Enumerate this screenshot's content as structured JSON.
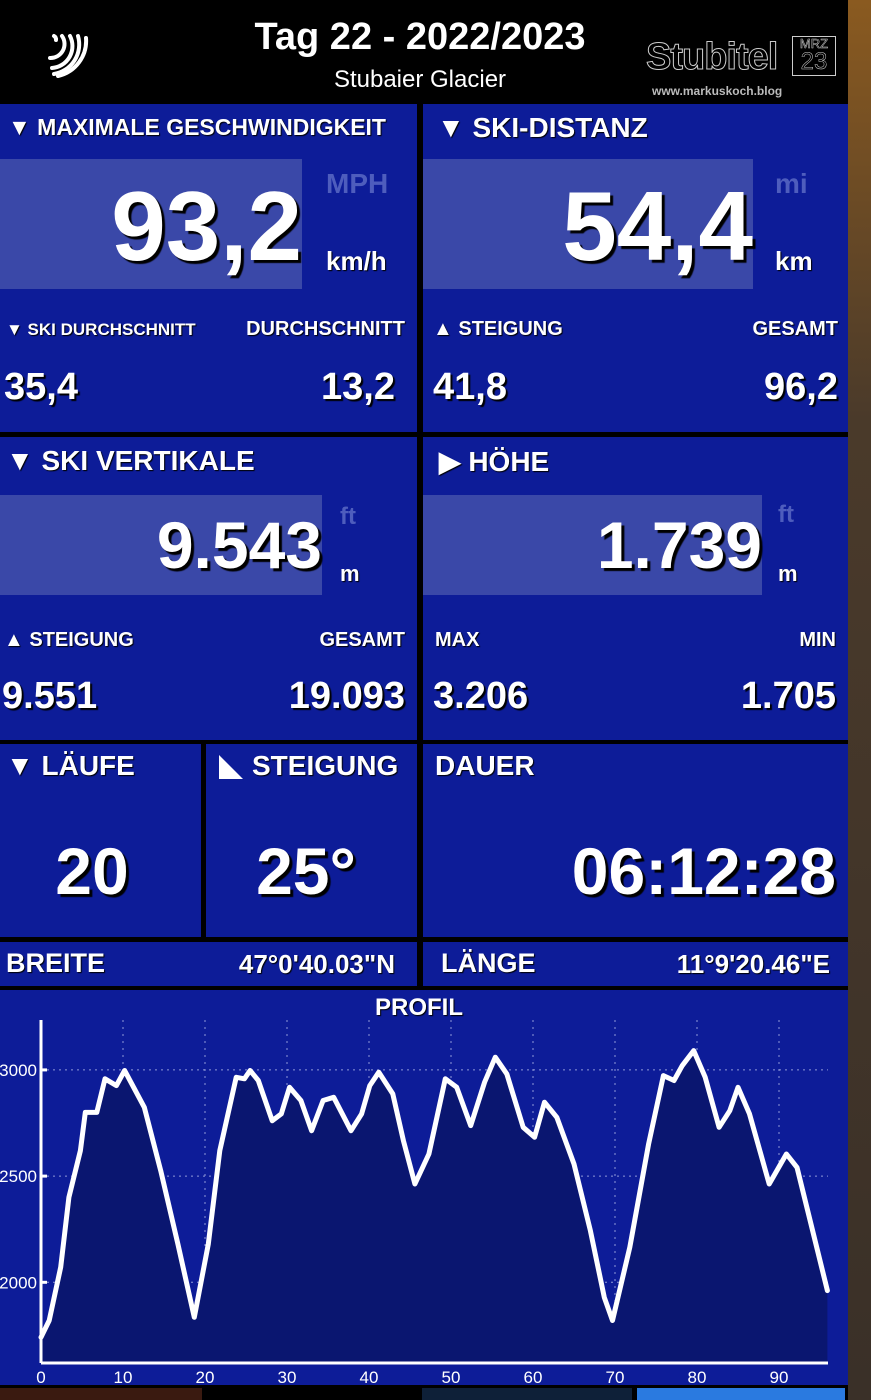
{
  "header": {
    "title": "Tag 22 - 2022/2023",
    "subtitle": "Stubaier Glacier",
    "logo_text": "Stubitel",
    "logo_month": "MRZ",
    "logo_year": "23",
    "logo_url": "www.markuskoch.blog",
    "icon": "signal-waves-icon"
  },
  "max_speed": {
    "label": "▼ MAXIMALE GESCHWINDIGKEIT",
    "value": "93,2",
    "alt_unit": "MPH",
    "unit": "km/h",
    "sub_left_label": "▼ SKI DURCHSCHNITT",
    "sub_right_label": "DURCHSCHNITT",
    "sub_left_value": "35,4",
    "sub_right_value": "13,2"
  },
  "ski_distance": {
    "label": "▼ SKI-DISTANZ",
    "value": "54,4",
    "alt_unit": "mi",
    "unit": "km",
    "sub_left_label": "▲ STEIGUNG",
    "sub_right_label": "GESAMT",
    "sub_left_value": "41,8",
    "sub_right_value": "96,2"
  },
  "ski_vertical": {
    "label": "▼ SKI VERTIKALE",
    "value": "9.543",
    "alt_unit": "ft",
    "unit": "m",
    "sub_left_label": "▲ STEIGUNG",
    "sub_right_label": "GESAMT",
    "sub_left_value": "9.551",
    "sub_right_value": "19.093"
  },
  "altitude": {
    "label": "▶ HÖHE",
    "value": "1.739",
    "alt_unit": "ft",
    "unit": "m",
    "sub_left_label": "MAX",
    "sub_right_label": "MIN",
    "sub_left_value": "3.206",
    "sub_right_value": "1.705"
  },
  "runs": {
    "label": "▼ LÄUFE",
    "value": "20"
  },
  "slope": {
    "label": "STEIGUNG",
    "value": "25°"
  },
  "duration": {
    "label": "DAUER",
    "value": "06:12:28"
  },
  "latitude": {
    "label": "BREITE",
    "value": "47°0'40.03\"N"
  },
  "longitude": {
    "label": "LÄNGE",
    "value": "11°9'20.46\"E"
  },
  "colors": {
    "panel": "#0d1c98",
    "highlight": "#3a48a8",
    "chart_bg": "#0d1c98",
    "line": "#ffffff"
  },
  "chart_data": {
    "type": "area",
    "title": "PROFIL",
    "xlabel": "",
    "ylabel": "",
    "xlim": [
      0,
      96
    ],
    "ylim": [
      1620,
      3235
    ],
    "xticks": [
      0,
      10,
      20,
      30,
      40,
      50,
      60,
      70,
      80,
      90
    ],
    "yticks": [
      2000,
      2500,
      3000
    ],
    "ytick_labels": [
      "2000",
      "2500",
      "3000"
    ],
    "grid": true,
    "x": [
      0,
      1,
      2.4,
      3.4,
      4.8,
      5.4,
      6.8,
      7.8,
      9.2,
      10.2,
      12.6,
      14.6,
      16.7,
      18.7,
      20.4,
      21.8,
      23.8,
      24.8,
      25.5,
      26.5,
      28.2,
      29.3,
      30.3,
      31.7,
      33,
      34.4,
      35.7,
      37.8,
      39.1,
      40.1,
      41.2,
      42.9,
      44.2,
      45.6,
      47.3,
      49.3,
      50.7,
      52.4,
      54.1,
      55.4,
      56.8,
      58.8,
      60.2,
      61.4,
      62.9,
      65,
      67,
      68.7,
      69.7,
      71.8,
      74.1,
      75.9,
      77.2,
      78.2,
      79.6,
      81,
      82.7,
      84,
      85,
      86.4,
      88.8,
      90.9,
      92.2,
      94.2,
      95.9
    ],
    "y": [
      1741,
      1820,
      2071,
      2400,
      2620,
      2800,
      2800,
      2958,
      2926,
      2997,
      2824,
      2526,
      2180,
      1835,
      2180,
      2620,
      2965,
      2958,
      2997,
      2950,
      2761,
      2793,
      2918,
      2856,
      2714,
      2856,
      2871,
      2714,
      2793,
      2926,
      2989,
      2887,
      2667,
      2463,
      2604,
      2958,
      2918,
      2738,
      2942,
      3060,
      2981,
      2730,
      2683,
      2848,
      2777,
      2557,
      2243,
      1929,
      1820,
      2165,
      2651,
      2973,
      2950,
      3020,
      3091,
      2965,
      2730,
      2808,
      2918,
      2793,
      2463,
      2604,
      2541,
      2228,
      1961
    ]
  }
}
